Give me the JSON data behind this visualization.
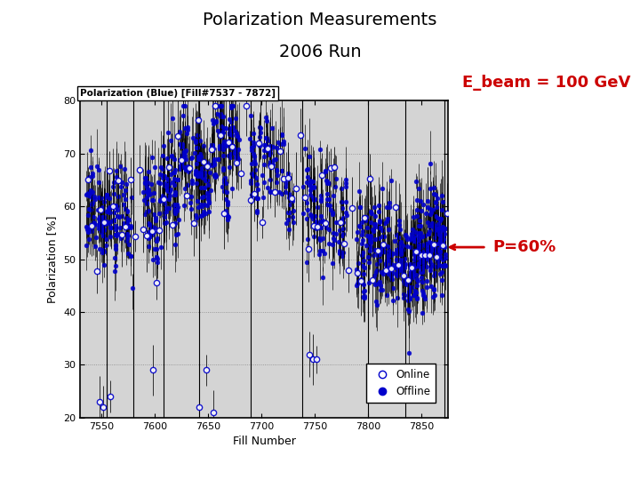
{
  "title_line1": "Polarization Measurements",
  "title_line2": "2006 Run",
  "title_fontsize": 14,
  "title_fontweight": "normal",
  "ebeam_text": "E_beam = 100 GeV",
  "ebeam_color": "#cc0000",
  "ebeam_fontsize": 13,
  "ebeam_fontweight": "bold",
  "p60_text": "P=60%",
  "p60_color": "#cc0000",
  "p60_fontsize": 13,
  "p60_fontweight": "bold",
  "plot_title": "Polarization (Blue) [Fill#7537 - 7872]",
  "xlabel": "Fill Number",
  "ylabel": "Polarization [%]",
  "xlim": [
    7530,
    7875
  ],
  "ylim": [
    20,
    80
  ],
  "yticks": [
    20,
    30,
    40,
    50,
    60,
    70,
    80
  ],
  "xticks": [
    7550,
    7600,
    7650,
    7700,
    7750,
    7800,
    7850
  ],
  "p60_line_y": 60,
  "plot_bg_color": "#d4d4d4",
  "dot_color": "#0000cc",
  "open_color": "#0000cc",
  "grid_color": "#888888",
  "seed": 42
}
